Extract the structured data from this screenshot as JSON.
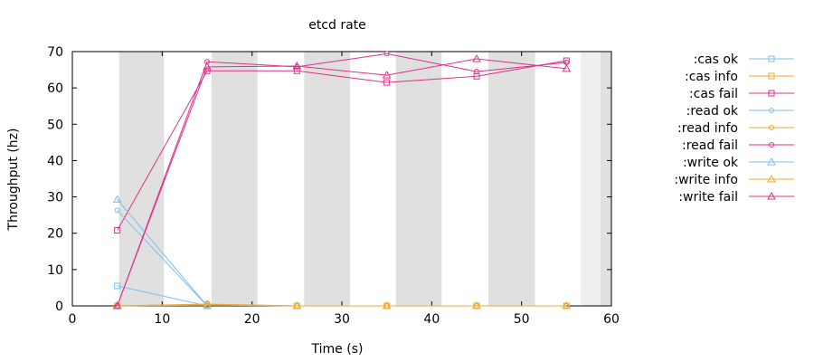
{
  "chart_data": {
    "type": "line",
    "title": "etcd rate",
    "xlabel": "Time (s)",
    "ylabel": "Throughput (hz)",
    "xlim": [
      0,
      60
    ],
    "ylim": [
      0,
      70
    ],
    "x_ticks": [
      0,
      10,
      20,
      30,
      40,
      50,
      60
    ],
    "y_ticks": [
      0,
      10,
      20,
      30,
      40,
      50,
      60,
      70
    ],
    "legend_position": "right",
    "shaded_intervals": [
      {
        "start": 5.2,
        "end": 10.2,
        "color": "#e0e0e0"
      },
      {
        "start": 15.5,
        "end": 20.6,
        "color": "#e0e0e0"
      },
      {
        "start": 25.8,
        "end": 30.9,
        "color": "#e0e0e0"
      },
      {
        "start": 36.0,
        "end": 41.1,
        "color": "#e0e0e0"
      },
      {
        "start": 46.3,
        "end": 51.5,
        "color": "#e0e0e0"
      },
      {
        "start": 56.6,
        "end": 58.8,
        "color": "#efefef"
      },
      {
        "start": 58.8,
        "end": 60.0,
        "color": "#e0e0e0"
      }
    ],
    "series": [
      {
        "name": ":cas ok",
        "color": "#81bfe9",
        "marker": "square",
        "x": [
          5,
          15
        ],
        "y": [
          5.5,
          0
        ]
      },
      {
        "name": ":cas info",
        "color": "#f0a830",
        "marker": "square",
        "x": [
          5,
          15,
          25,
          35,
          45,
          55
        ],
        "y": [
          0,
          0.4,
          0,
          0,
          0,
          0
        ]
      },
      {
        "name": ":cas fail",
        "color": "#e0308c",
        "marker": "square",
        "x": [
          5,
          15,
          25,
          35,
          45,
          55
        ],
        "y": [
          20.8,
          64.7,
          64.7,
          61.5,
          63.2,
          67.5
        ]
      },
      {
        "name": ":read ok",
        "color": "#81bfe9",
        "marker": "circle",
        "x": [
          5,
          15
        ],
        "y": [
          26.3,
          0
        ]
      },
      {
        "name": ":read info",
        "color": "#f0a830",
        "marker": "circle",
        "x": [
          5,
          15,
          25,
          35,
          45,
          55
        ],
        "y": [
          0,
          0.2,
          0,
          0,
          0,
          0
        ]
      },
      {
        "name": ":read fail",
        "color": "#e0308c",
        "marker": "circle",
        "x": [
          5,
          15,
          25,
          35,
          45,
          55
        ],
        "y": [
          0,
          67.2,
          65.8,
          69.4,
          64.5,
          67.0
        ]
      },
      {
        "name": ":write ok",
        "color": "#81bfe9",
        "marker": "triangle",
        "x": [
          5,
          15
        ],
        "y": [
          29.3,
          0
        ]
      },
      {
        "name": ":write info",
        "color": "#f0a830",
        "marker": "triangle",
        "x": [
          5,
          15,
          25,
          35,
          45,
          55
        ],
        "y": [
          0,
          0.5,
          0,
          0,
          0,
          0
        ]
      },
      {
        "name": ":write fail",
        "color": "#e0308c",
        "marker": "triangle",
        "x": [
          5,
          15,
          25,
          35,
          45,
          55
        ],
        "y": [
          0,
          65.8,
          66.0,
          63.5,
          68.0,
          65.3
        ]
      }
    ]
  }
}
